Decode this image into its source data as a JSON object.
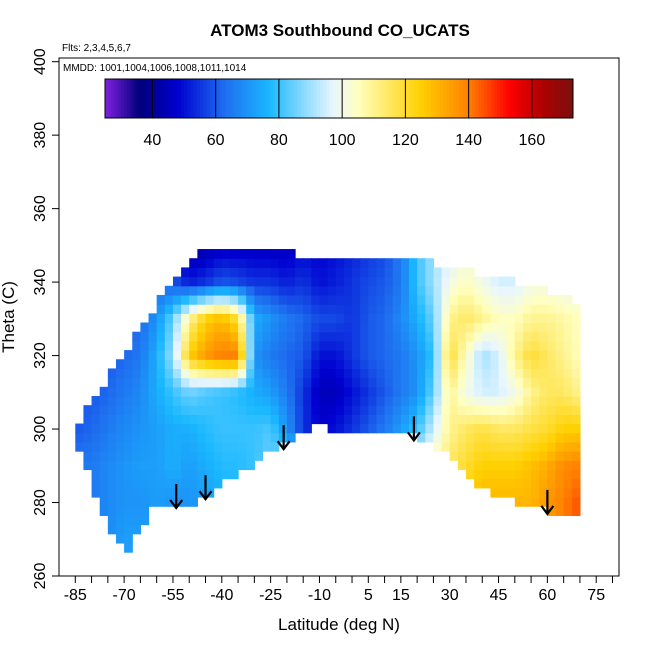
{
  "chart_data": {
    "type": "heatmap",
    "title": "ATOM3 Southbound CO_UCATS",
    "annotations": [
      "Flts: 2,3,4,5,6,7",
      "MMDD: 1001,1004,1006,1008,1011,1014"
    ],
    "xlabel": "Latitude (deg N)",
    "ylabel": "Theta (C)",
    "xlim": [
      -90,
      82
    ],
    "ylim": [
      260,
      401
    ],
    "x_ticks": [
      -85,
      -80,
      -75,
      -70,
      -65,
      -60,
      -55,
      -50,
      -45,
      -40,
      -35,
      -30,
      -25,
      -20,
      -15,
      -10,
      -5,
      0,
      5,
      10,
      15,
      20,
      25,
      30,
      35,
      40,
      45,
      50,
      55,
      60,
      65,
      70,
      75,
      80
    ],
    "x_tick_labels": [
      "-85",
      "-70",
      "-55",
      "-40",
      "-25",
      "-10",
      "5",
      "15",
      "30",
      "45",
      "60",
      "75"
    ],
    "x_tick_label_values": [
      -85,
      -70,
      -55,
      -40,
      -25,
      -10,
      5,
      15,
      30,
      45,
      60,
      75
    ],
    "y_ticks": [
      260,
      280,
      300,
      320,
      340,
      360,
      380,
      400
    ],
    "y_tick_labels": [
      "260",
      "280",
      "300",
      "320",
      "340",
      "360",
      "380",
      "400"
    ],
    "colorbar": {
      "range": [
        25,
        173
      ],
      "ticks": [
        40,
        60,
        80,
        100,
        120,
        140,
        160
      ],
      "tick_labels": [
        "40",
        "60",
        "80",
        "100",
        "120",
        "140",
        "160"
      ],
      "colors": [
        "#8020e0",
        "#00007a",
        "#0000d0",
        "#1f6ff0",
        "#1ab8ff",
        "#e8f6ff",
        "#ffffc0",
        "#ffd000",
        "#ff8000",
        "#ff0000",
        "#b00000",
        "#7a1010"
      ],
      "color_stops": [
        25,
        36,
        48,
        63,
        77,
        97,
        105,
        125,
        140,
        153,
        163,
        173
      ]
    },
    "profile_arrows_x": [
      -54,
      -45,
      -21,
      19,
      60
    ],
    "field": {
      "x": [
        -85,
        -80,
        -75,
        -70,
        -65,
        -60,
        -55,
        -50,
        -45,
        -40,
        -35,
        -30,
        -25,
        -20,
        -15,
        -10,
        -5,
        0,
        5,
        10,
        15,
        20,
        25,
        30,
        35,
        40,
        45,
        50,
        55,
        60,
        65,
        70
      ],
      "theta_bottom": [
        298,
        285,
        275,
        266,
        272,
        280,
        280,
        278,
        282,
        285,
        288,
        290,
        294,
        296,
        299,
        301,
        300,
        300,
        300,
        299,
        298,
        298,
        296,
        292,
        288,
        284,
        282,
        280,
        279,
        278,
        277,
        276
      ],
      "theta_top": [
        300,
        307,
        314,
        320,
        327,
        334,
        340,
        346,
        349,
        349,
        349,
        349,
        348,
        348,
        347,
        347,
        347,
        347,
        347,
        346,
        346,
        346,
        345,
        344,
        343,
        342,
        341,
        340,
        339,
        338,
        336,
        334
      ],
      "theta_levels": [
        270,
        280,
        290,
        300,
        310,
        320,
        330,
        340,
        350
      ],
      "values": [
        [
          65,
          65,
          68,
          72,
          72,
          70,
          68,
          70,
          72,
          75,
          80,
          85,
          95,
          95,
          98,
          100,
          100,
          100,
          100,
          100,
          100,
          100,
          105,
          115,
          125,
          130,
          130,
          130,
          130,
          135,
          140,
          145
        ],
        [
          65,
          65,
          68,
          70,
          70,
          72,
          70,
          70,
          72,
          75,
          78,
          82,
          90,
          92,
          95,
          98,
          98,
          98,
          98,
          98,
          100,
          100,
          105,
          115,
          125,
          130,
          130,
          130,
          130,
          135,
          140,
          145
        ],
        [
          65,
          65,
          68,
          70,
          72,
          72,
          75,
          72,
          75,
          78,
          78,
          80,
          85,
          88,
          80,
          75,
          72,
          75,
          80,
          90,
          95,
          100,
          105,
          115,
          120,
          125,
          125,
          125,
          128,
          132,
          138,
          140
        ],
        [
          60,
          62,
          65,
          68,
          70,
          72,
          75,
          75,
          78,
          80,
          80,
          80,
          82,
          70,
          55,
          48,
          50,
          55,
          60,
          65,
          72,
          80,
          95,
          110,
          115,
          118,
          115,
          115,
          118,
          120,
          125,
          125
        ],
        [
          60,
          60,
          62,
          65,
          68,
          75,
          80,
          85,
          82,
          80,
          78,
          75,
          72,
          65,
          55,
          45,
          45,
          50,
          55,
          60,
          65,
          70,
          85,
          110,
          100,
          95,
          95,
          100,
          110,
          115,
          115,
          110
        ],
        [
          58,
          58,
          60,
          62,
          65,
          75,
          90,
          125,
          135,
          140,
          140,
          70,
          65,
          62,
          60,
          50,
          50,
          55,
          60,
          62,
          65,
          70,
          80,
          120,
          105,
          90,
          95,
          110,
          120,
          115,
          110,
          105
        ],
        [
          55,
          55,
          58,
          60,
          62,
          70,
          85,
          110,
          125,
          130,
          120,
          75,
          70,
          65,
          62,
          58,
          58,
          55,
          60,
          62,
          68,
          75,
          85,
          110,
          115,
          110,
          105,
          105,
          110,
          110,
          108,
          105
        ],
        [
          50,
          50,
          52,
          55,
          58,
          62,
          60,
          52,
          55,
          60,
          58,
          55,
          55,
          52,
          55,
          50,
          52,
          55,
          58,
          60,
          65,
          80,
          90,
          100,
          105,
          100,
          95,
          95,
          100,
          100,
          98,
          98
        ],
        [
          45,
          45,
          45,
          45,
          45,
          45,
          42,
          40,
          42,
          45,
          45,
          45,
          45,
          45,
          48,
          48,
          50,
          52,
          55,
          58,
          65,
          80,
          90,
          95,
          100,
          100,
          95,
          95,
          95,
          95,
          95,
          95
        ]
      ]
    }
  }
}
